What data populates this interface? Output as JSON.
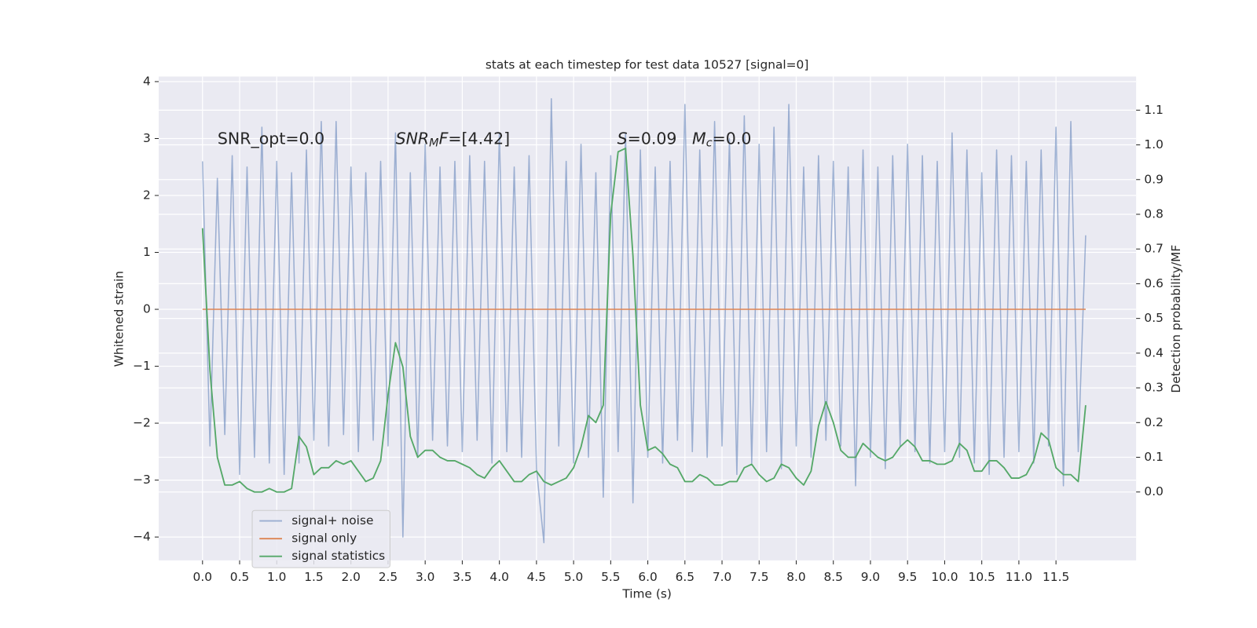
{
  "chart_data": {
    "type": "line",
    "title": "stats at each timestep for test data 10527 [signal=0]",
    "xlabel": "Time (s)",
    "ylabel": "Whitened strain",
    "y2label": "Detection probability/MF",
    "background": "#eaeaf2",
    "grid": true,
    "legend": "lower left",
    "xlim": [
      -0.59,
      12.58
    ],
    "ylim": [
      -4.41,
      4.09
    ],
    "y2lim": [
      -0.197,
      1.197
    ],
    "xticks": [
      {
        "value": 0,
        "label": "0.0"
      },
      0.5,
      {
        "value": 1,
        "label": "1.0"
      },
      1.5,
      {
        "value": 2,
        "label": "2.0"
      },
      2.5,
      {
        "value": 3,
        "label": "3.0"
      },
      3.5,
      {
        "value": 4,
        "label": "4.0"
      },
      4.5,
      {
        "value": 5,
        "label": "5.0"
      },
      5.5,
      {
        "value": 6,
        "label": "6.0"
      },
      6.5,
      {
        "value": 7,
        "label": "7.0"
      },
      7.5,
      {
        "value": 8,
        "label": "8.0"
      },
      8.5,
      {
        "value": 9,
        "label": "9.0"
      },
      9.5,
      {
        "value": 10,
        "label": "10.0"
      },
      10.5,
      {
        "value": 11,
        "label": "11.0"
      },
      11.5
    ],
    "yticks": [
      {
        "value": -4,
        "label": "−4"
      },
      {
        "value": -3,
        "label": "−3"
      },
      {
        "value": -2,
        "label": "−2"
      },
      {
        "value": -1,
        "label": "−1"
      },
      0,
      1,
      2,
      3,
      4
    ],
    "y2ticks": [
      {
        "value": 0,
        "label": "0.0"
      },
      0.1,
      0.2,
      0.3,
      0.4,
      0.5,
      0.6,
      0.7,
      0.8,
      0.9,
      {
        "value": 1,
        "label": "1.0"
      },
      1.1
    ],
    "annotations": [
      [
        {
          "text": "SNR_opt=0.0",
          "style": "normal"
        }
      ],
      [
        {
          "text": "SNR",
          "style": "italic"
        },
        {
          "text": "M",
          "style": "sub"
        },
        {
          "text": "F",
          "style": "italic"
        },
        {
          "text": "=[4.42]",
          "style": "normal"
        }
      ],
      [
        {
          "text": "S",
          "style": "italic"
        },
        {
          "text": "=0.09",
          "style": "normal"
        }
      ],
      [
        {
          "text": "M",
          "style": "italic"
        },
        {
          "text": "c",
          "style": "sub"
        },
        {
          "text": "=0.0",
          "style": "normal"
        }
      ]
    ],
    "x": [
      0.0,
      0.1,
      0.2,
      0.3,
      0.4,
      0.5,
      0.6,
      0.7,
      0.8,
      0.9,
      1.0,
      1.1,
      1.2,
      1.3,
      1.4,
      1.5,
      1.6,
      1.7,
      1.8,
      1.9,
      2.0,
      2.1,
      2.2,
      2.3,
      2.4,
      2.5,
      2.6,
      2.7,
      2.8,
      2.9,
      3.0,
      3.1,
      3.2,
      3.3,
      3.4,
      3.5,
      3.6,
      3.7,
      3.8,
      3.9,
      4.0,
      4.1,
      4.2,
      4.3,
      4.4,
      4.5,
      4.6,
      4.7,
      4.8,
      4.9,
      5.0,
      5.1,
      5.2,
      5.3,
      5.4,
      5.5,
      5.6,
      5.7,
      5.8,
      5.9,
      6.0,
      6.1,
      6.2,
      6.3,
      6.4,
      6.5,
      6.6,
      6.7,
      6.8,
      6.9,
      7.0,
      7.1,
      7.2,
      7.3,
      7.4,
      7.5,
      7.6,
      7.7,
      7.8,
      7.9,
      8.0,
      8.1,
      8.2,
      8.3,
      8.4,
      8.5,
      8.6,
      8.7,
      8.8,
      8.9,
      9.0,
      9.1,
      9.2,
      9.3,
      9.4,
      9.5,
      9.6,
      9.7,
      9.8,
      9.9,
      10.0,
      10.1,
      10.2,
      10.3,
      10.4,
      10.5,
      10.6,
      10.7,
      10.8,
      10.9,
      11.0,
      11.1,
      11.2,
      11.3,
      11.4,
      11.5,
      11.6,
      11.7,
      11.8,
      11.9
    ],
    "series": [
      {
        "name": "signal+ noise",
        "color": "#4c72b0",
        "alpha": 0.5,
        "axis": "y",
        "values": [
          2.6,
          -2.4,
          2.3,
          -2.2,
          2.7,
          -2.9,
          2.5,
          -2.6,
          3.2,
          -2.7,
          2.6,
          -2.9,
          2.4,
          -2.7,
          2.8,
          -2.3,
          3.3,
          -2.4,
          3.3,
          -2.2,
          2.5,
          -2.5,
          2.4,
          -2.3,
          2.6,
          -2.4,
          3.1,
          -4.0,
          2.4,
          -2.6,
          2.9,
          -2.3,
          2.5,
          -2.4,
          2.6,
          -2.5,
          2.7,
          -2.3,
          2.6,
          -2.7,
          3.1,
          -2.5,
          2.5,
          -2.6,
          2.7,
          -2.8,
          -4.1,
          3.7,
          -2.4,
          2.6,
          -2.7,
          2.9,
          -2.6,
          2.4,
          -3.3,
          2.7,
          -2.5,
          3.1,
          -3.4,
          2.8,
          -2.6,
          2.5,
          -2.7,
          2.6,
          -2.3,
          3.6,
          -2.5,
          2.8,
          -2.6,
          3.3,
          -2.4,
          3.0,
          -2.9,
          3.4,
          -2.7,
          2.9,
          -2.5,
          3.2,
          -2.8,
          3.6,
          -2.4,
          2.5,
          -2.6,
          2.7,
          -2.3,
          2.6,
          -2.4,
          2.5,
          -3.1,
          2.8,
          -2.6,
          2.5,
          -2.8,
          2.7,
          -2.4,
          2.9,
          -2.5,
          2.7,
          -2.7,
          2.6,
          -2.5,
          3.1,
          -2.6,
          2.8,
          -2.7,
          2.4,
          -2.9,
          2.8,
          -2.6,
          2.7,
          -2.5,
          2.6,
          -2.7,
          2.8,
          -2.4,
          3.2,
          -3.1,
          3.3,
          -2.5,
          1.3
        ]
      },
      {
        "name": "signal only",
        "color": "#dd8452",
        "alpha": 1,
        "axis": "y",
        "values": [
          0,
          0,
          0,
          0,
          0,
          0,
          0,
          0,
          0,
          0,
          0,
          0,
          0,
          0,
          0,
          0,
          0,
          0,
          0,
          0,
          0,
          0,
          0,
          0,
          0,
          0,
          0,
          0,
          0,
          0,
          0,
          0,
          0,
          0,
          0,
          0,
          0,
          0,
          0,
          0,
          0,
          0,
          0,
          0,
          0,
          0,
          0,
          0,
          0,
          0,
          0,
          0,
          0,
          0,
          0,
          0,
          0,
          0,
          0,
          0,
          0,
          0,
          0,
          0,
          0,
          0,
          0,
          0,
          0,
          0,
          0,
          0,
          0,
          0,
          0,
          0,
          0,
          0,
          0,
          0,
          0,
          0,
          0,
          0,
          0,
          0,
          0,
          0,
          0,
          0,
          0,
          0,
          0,
          0,
          0,
          0,
          0,
          0,
          0,
          0,
          0,
          0,
          0,
          0,
          0,
          0,
          0,
          0,
          0,
          0,
          0,
          0,
          0,
          0,
          0,
          0,
          0,
          0,
          0,
          0
        ]
      },
      {
        "name": "signal statistics",
        "color": "#55a868",
        "alpha": 1,
        "axis": "y2",
        "values": [
          0.76,
          0.35,
          0.1,
          0.02,
          0.02,
          0.03,
          0.01,
          0.0,
          0.0,
          0.01,
          0.0,
          0.0,
          0.01,
          0.16,
          0.13,
          0.05,
          0.07,
          0.07,
          0.09,
          0.08,
          0.09,
          0.06,
          0.03,
          0.04,
          0.09,
          0.28,
          0.43,
          0.36,
          0.16,
          0.1,
          0.12,
          0.12,
          0.1,
          0.09,
          0.09,
          0.08,
          0.07,
          0.05,
          0.04,
          0.07,
          0.09,
          0.06,
          0.03,
          0.03,
          0.05,
          0.06,
          0.03,
          0.02,
          0.03,
          0.04,
          0.07,
          0.13,
          0.22,
          0.2,
          0.25,
          0.8,
          0.98,
          0.99,
          0.68,
          0.25,
          0.12,
          0.13,
          0.11,
          0.08,
          0.07,
          0.03,
          0.03,
          0.05,
          0.04,
          0.02,
          0.02,
          0.03,
          0.03,
          0.07,
          0.08,
          0.05,
          0.03,
          0.04,
          0.08,
          0.07,
          0.04,
          0.02,
          0.06,
          0.19,
          0.26,
          0.2,
          0.12,
          0.1,
          0.1,
          0.14,
          0.12,
          0.1,
          0.09,
          0.1,
          0.13,
          0.15,
          0.13,
          0.09,
          0.09,
          0.08,
          0.08,
          0.09,
          0.14,
          0.12,
          0.06,
          0.06,
          0.09,
          0.09,
          0.07,
          0.04,
          0.04,
          0.05,
          0.09,
          0.17,
          0.15,
          0.07,
          0.05,
          0.05,
          0.03,
          0.25
        ]
      }
    ]
  }
}
